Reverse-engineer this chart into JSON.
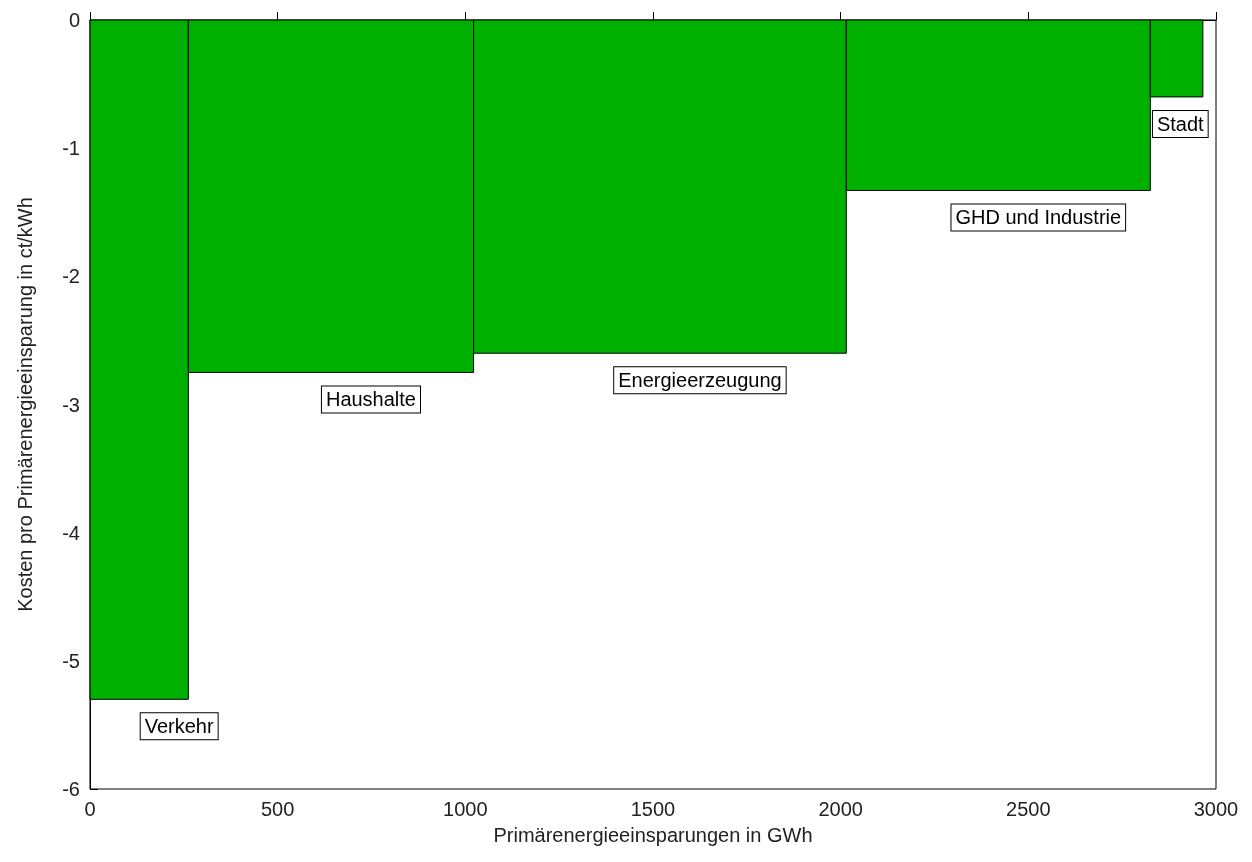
{
  "chart_data": {
    "type": "histogram",
    "xlabel": "Primärenergieeinsparungen in GWh",
    "ylabel": "Kosten pro Primärenergieeinsparung in ct/kWh",
    "bins": [
      0,
      262,
      1022,
      2015,
      2825,
      2965
    ],
    "values": [
      -5.3,
      -2.75,
      -2.6,
      -1.33,
      -0.6
    ],
    "color": "#00b000",
    "xlim": [
      0,
      3000
    ],
    "xticks": [
      0,
      500,
      1000,
      1500,
      2000,
      2500,
      3000
    ],
    "ylim": [
      -6,
      0
    ],
    "yticks": [
      -6,
      -5,
      -4,
      -3,
      -2,
      -1,
      0
    ],
    "grid": false,
    "annotations": [
      "Verkehr",
      "Haushalte",
      "Energieerzeugung",
      "GHD und Industrie",
      "Stadt"
    ]
  }
}
